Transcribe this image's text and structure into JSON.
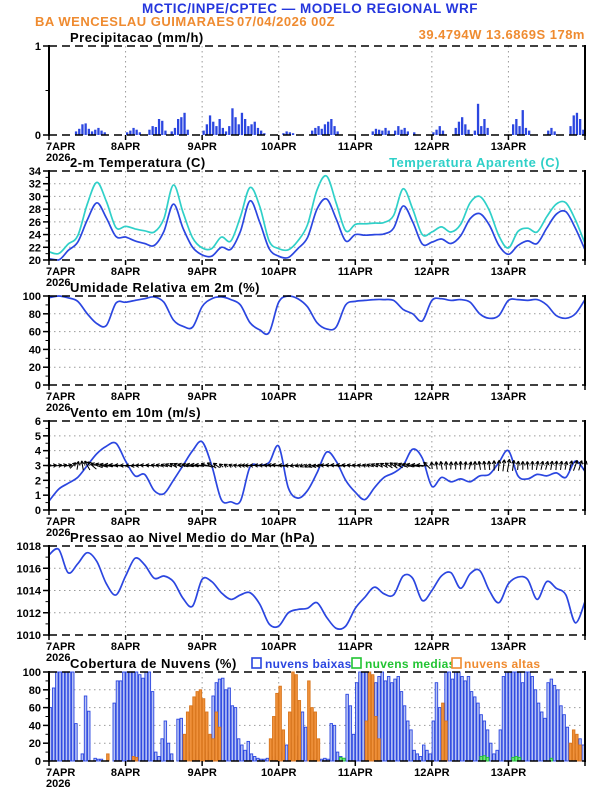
{
  "header": {
    "title": "MCTIC/INPE/CPTEC — MODELO REGIONAL WRF",
    "station": "BA WENCESLAU GUIMARAES",
    "run": "07/04/2026 00Z",
    "coords": "39.4794W 13.6869S 178m"
  },
  "x_axis": {
    "labels": [
      "7APR",
      "8APR",
      "9APR",
      "10APR",
      "11APR",
      "12APR",
      "13APR"
    ],
    "year": "2026",
    "days": 7
  },
  "colors": {
    "blue": "#2b46e0",
    "blue_fill": "#b7c3f4",
    "cyan": "#2fd0c8",
    "orange": "#ef8b30",
    "orange_fill": "#f0923c",
    "orange_edge": "#d9761c",
    "green": "#22c433",
    "green_fill": "#7fe08c",
    "grid": "#9a9a9a",
    "frame": "#000000",
    "title_blue": "#2436dd"
  },
  "chart_data": [
    {
      "type": "bar",
      "title": "Precipitacao (mm/h)",
      "ylim": [
        0,
        1
      ],
      "yticks": [
        0,
        1
      ],
      "ytick_step": 1,
      "grid_interior": false,
      "bars_hourly": [
        [
          8,
          0.04
        ],
        [
          9,
          0.07
        ],
        [
          10,
          0.12
        ],
        [
          11,
          0.13
        ],
        [
          12,
          0.07
        ],
        [
          13,
          0.04
        ],
        [
          14,
          0.06
        ],
        [
          15,
          0.08
        ],
        [
          16,
          0.05
        ],
        [
          17,
          0.03
        ],
        [
          24,
          0.03
        ],
        [
          25,
          0.05
        ],
        [
          26,
          0.08
        ],
        [
          27,
          0.06
        ],
        [
          28,
          0.03
        ],
        [
          31,
          0.06
        ],
        [
          32,
          0.1
        ],
        [
          33,
          0.09
        ],
        [
          34,
          0.18
        ],
        [
          35,
          0.16
        ],
        [
          36,
          0.05
        ],
        [
          38,
          0.04
        ],
        [
          39,
          0.08
        ],
        [
          40,
          0.18
        ],
        [
          41,
          0.2
        ],
        [
          42,
          0.25
        ],
        [
          43,
          0.06
        ],
        [
          48,
          0.05
        ],
        [
          49,
          0.12
        ],
        [
          50,
          0.22
        ],
        [
          51,
          0.15
        ],
        [
          52,
          0.1
        ],
        [
          53,
          0.18
        ],
        [
          54,
          0.08
        ],
        [
          55,
          0.04
        ],
        [
          56,
          0.1
        ],
        [
          57,
          0.3
        ],
        [
          58,
          0.2
        ],
        [
          59,
          0.12
        ],
        [
          60,
          0.25
        ],
        [
          61,
          0.18
        ],
        [
          62,
          0.1
        ],
        [
          63,
          0.12
        ],
        [
          64,
          0.15
        ],
        [
          65,
          0.08
        ],
        [
          66,
          0.05
        ],
        [
          67,
          0.02
        ],
        [
          73,
          0.02
        ],
        [
          74,
          0.04
        ],
        [
          75,
          0.03
        ],
        [
          76,
          0.02
        ],
        [
          82,
          0.05
        ],
        [
          83,
          0.08
        ],
        [
          84,
          0.1
        ],
        [
          85,
          0.07
        ],
        [
          86,
          0.12
        ],
        [
          87,
          0.15
        ],
        [
          88,
          0.18
        ],
        [
          89,
          0.1
        ],
        [
          90,
          0.04
        ],
        [
          101,
          0.04
        ],
        [
          102,
          0.07
        ],
        [
          103,
          0.06
        ],
        [
          104,
          0.05
        ],
        [
          105,
          0.08
        ],
        [
          106,
          0.05
        ],
        [
          108,
          0.05
        ],
        [
          109,
          0.1
        ],
        [
          110,
          0.06
        ],
        [
          111,
          0.08
        ],
        [
          112,
          0.04
        ],
        [
          114,
          0.03
        ],
        [
          120,
          0.03
        ],
        [
          121,
          0.06
        ],
        [
          122,
          0.1
        ],
        [
          123,
          0.05
        ],
        [
          127,
          0.08
        ],
        [
          128,
          0.15
        ],
        [
          129,
          0.2
        ],
        [
          130,
          0.12
        ],
        [
          131,
          0.06
        ],
        [
          133,
          0.05
        ],
        [
          134,
          0.35
        ],
        [
          135,
          0.1
        ],
        [
          136,
          0.18
        ],
        [
          137,
          0.08
        ],
        [
          145,
          0.12
        ],
        [
          146,
          0.18
        ],
        [
          147,
          0.1
        ],
        [
          148,
          0.28
        ],
        [
          149,
          0.08
        ],
        [
          150,
          0.05
        ],
        [
          156,
          0.05
        ],
        [
          157,
          0.08
        ],
        [
          158,
          0.04
        ],
        [
          163,
          0.1
        ],
        [
          164,
          0.22
        ],
        [
          165,
          0.25
        ],
        [
          166,
          0.18
        ],
        [
          167,
          0.06
        ]
      ]
    },
    {
      "type": "line",
      "title": "2-m Temperatura (C)",
      "title2": "Temperatura Aparente (C)",
      "ylim": [
        20,
        34
      ],
      "ytick_step": 2,
      "grid_interior": true,
      "x_step_hours": 3,
      "series": [
        {
          "name": "2-m Temperatura (C)",
          "color_key": "blue",
          "values": [
            20.2,
            19.9,
            21.5,
            22.8,
            26.3,
            29.0,
            26.6,
            23.7,
            23.6,
            23.0,
            22.6,
            22.3,
            24.5,
            28.8,
            25.0,
            22.0,
            20.8,
            20.6,
            22.0,
            21.7,
            24.5,
            29.3,
            26.0,
            21.8,
            20.6,
            20.4,
            21.8,
            23.5,
            28.0,
            29.6,
            26.5,
            23.0,
            24.0,
            23.9,
            24.0,
            24.1,
            25.0,
            28.5,
            26.0,
            22.5,
            22.8,
            23.3,
            22.6,
            23.8,
            26.5,
            27.3,
            25.5,
            22.3,
            20.9,
            22.3,
            23.0,
            22.6,
            25.0,
            27.2,
            27.6,
            25.0,
            21.6
          ]
        },
        {
          "name": "Temperatura Aparente (C)",
          "color_key": "cyan",
          "values": [
            21.3,
            21.0,
            22.5,
            23.8,
            28.8,
            32.2,
            29.2,
            25.1,
            25.3,
            24.9,
            24.6,
            24.4,
            26.5,
            31.8,
            27.5,
            23.5,
            21.9,
            21.8,
            23.6,
            23.0,
            26.8,
            31.4,
            28.5,
            23.0,
            21.8,
            21.6,
            23.0,
            25.5,
            31.0,
            33.2,
            29.0,
            24.6,
            25.6,
            25.7,
            25.8,
            25.9,
            27.0,
            31.2,
            28.0,
            24.0,
            24.4,
            25.2,
            24.4,
            25.6,
            29.0,
            30.0,
            27.8,
            23.8,
            21.9,
            24.5,
            25.0,
            24.4,
            26.8,
            28.8,
            29.0,
            26.3,
            22.6
          ]
        }
      ]
    },
    {
      "type": "line",
      "title": "Umidade Relativa em 2m (%)",
      "ylim": [
        0,
        100
      ],
      "ytick_step": 20,
      "grid_interior": true,
      "x_step_hours": 3,
      "series": [
        {
          "name": "Umidade Relativa em 2m (%)",
          "color_key": "blue",
          "values": [
            98,
            100,
            98,
            94,
            80,
            69,
            67,
            92,
            93,
            95,
            97,
            99,
            93,
            73,
            66,
            65,
            88,
            97,
            99,
            96,
            90,
            70,
            62,
            59,
            93,
            100,
            97,
            88,
            70,
            63,
            65,
            90,
            94,
            95,
            96,
            96,
            95,
            85,
            80,
            72,
            95,
            97,
            95,
            96,
            93,
            80,
            75,
            78,
            95,
            96,
            95,
            96,
            90,
            78,
            75,
            80,
            96
          ]
        }
      ]
    },
    {
      "type": "wind",
      "title": "Vento em 10m (m/s)",
      "ylim": [
        0,
        6
      ],
      "ytick_step": 1,
      "grid_interior": true,
      "x_step_hours": 3,
      "arrow_anchor": 3,
      "series": [
        {
          "name": "Vento em 10m (m/s)",
          "color_key": "blue",
          "values": [
            0.6,
            1.4,
            1.8,
            2.2,
            3.0,
            3.8,
            4.3,
            4.5,
            3.3,
            2.3,
            2.4,
            1.3,
            1.1,
            2.0,
            3.0,
            4.0,
            4.6,
            3.0,
            0.7,
            0.55,
            0.6,
            2.9,
            3.0,
            3.2,
            4.3,
            1.5,
            0.8,
            1.3,
            2.5,
            3.9,
            3.3,
            2.0,
            1.2,
            0.7,
            1.5,
            2.2,
            2.5,
            3.0,
            4.1,
            3.5,
            1.6,
            2.2,
            1.9,
            2.1,
            1.9,
            2.3,
            2.4,
            3.2,
            4.0,
            2.3,
            2.1,
            2.4,
            2.3,
            2.5,
            2.2,
            3.3,
            2.6
          ]
        }
      ],
      "arrow_angles_deg": [
        5,
        8,
        10,
        80,
        120,
        160,
        170,
        175,
        180,
        185,
        175,
        170,
        160,
        150,
        165,
        170,
        175,
        150,
        140,
        160,
        175,
        180,
        178,
        176,
        174,
        180,
        200,
        210,
        190,
        178,
        174,
        172,
        170,
        165,
        155,
        150,
        145,
        160,
        170,
        175,
        95,
        100,
        85,
        90,
        75,
        100,
        95,
        85,
        80,
        85,
        95,
        80,
        75,
        85,
        80,
        70,
        75
      ]
    },
    {
      "type": "line",
      "title": "Pressao ao Nivel Medio do Mar (hPa)",
      "ylim": [
        1010,
        1018
      ],
      "ytick_step": 2,
      "grid_interior": true,
      "x_step_hours": 3,
      "series": [
        {
          "name": "Pressao ao Nivel Medio do Mar (hPa)",
          "color_key": "blue",
          "values": [
            1017.2,
            1017.7,
            1015.6,
            1016.4,
            1017.4,
            1016.6,
            1014.6,
            1013.6,
            1015.3,
            1016.9,
            1016.3,
            1015.1,
            1015.3,
            1014.8,
            1013.3,
            1012.6,
            1015.0,
            1014.8,
            1013.8,
            1013.2,
            1013.6,
            1013.8,
            1012.8,
            1011.0,
            1010.8,
            1012.0,
            1012.3,
            1012.4,
            1012.9,
            1011.6,
            1010.6,
            1010.8,
            1012.4,
            1013.4,
            1014.3,
            1013.7,
            1013.6,
            1015.3,
            1015.1,
            1013.1,
            1014.0,
            1015.3,
            1015.6,
            1014.2,
            1015.5,
            1015.8,
            1014.0,
            1012.9,
            1014.6,
            1015.2,
            1015.0,
            1013.2,
            1014.8,
            1014.2,
            1013.6,
            1011.1,
            1013.0
          ]
        }
      ]
    },
    {
      "type": "cloudbars",
      "title": "Cobertura de Nuvens (%)",
      "ylim": [
        0,
        100
      ],
      "ytick_step": 20,
      "grid_interior": true,
      "legend": [
        {
          "label": "nuvens baixas",
          "color_key": "blue"
        },
        {
          "label": "nuvens medias",
          "color_key": "green"
        },
        {
          "label": "nuvens altas",
          "color_key": "orange"
        }
      ],
      "baixas_hourly": [
        60,
        82,
        100,
        100,
        100,
        100,
        100,
        100,
        42,
        0,
        8,
        73,
        56,
        0,
        3,
        2,
        2,
        0,
        0,
        0,
        65,
        90,
        90,
        100,
        100,
        100,
        100,
        100,
        97,
        93,
        100,
        100,
        78,
        10,
        5,
        25,
        45,
        20,
        8,
        0,
        47,
        48,
        5,
        8,
        10,
        12,
        8,
        15,
        18,
        10,
        8,
        73,
        88,
        92,
        93,
        80,
        82,
        62,
        60,
        25,
        18,
        12,
        22,
        8,
        5,
        3,
        2,
        2,
        3,
        2,
        5,
        8,
        8,
        10,
        18,
        12,
        20,
        8,
        28,
        55,
        38,
        18,
        10,
        3,
        2,
        2,
        3,
        2,
        42,
        40,
        10,
        5,
        3,
        75,
        62,
        30,
        88,
        100,
        100,
        100,
        100,
        95,
        88,
        95,
        100,
        90,
        95,
        88,
        92,
        95,
        78,
        62,
        45,
        35,
        12,
        8,
        5,
        18,
        12,
        8,
        45,
        88,
        60,
        35,
        100,
        100,
        92,
        100,
        100,
        95,
        90,
        95,
        78,
        72,
        65,
        52,
        45,
        35,
        20,
        8,
        12,
        35,
        95,
        100,
        100,
        100,
        100,
        100,
        88,
        100,
        100,
        95,
        80,
        65,
        55,
        48,
        88,
        92,
        85,
        80,
        62,
        52,
        38,
        18,
        8,
        4,
        25,
        18
      ],
      "altas_hourly": [
        [
          18,
          8
        ],
        [
          26,
          5
        ],
        [
          27,
          4
        ],
        [
          42,
          30
        ],
        [
          43,
          55
        ],
        [
          44,
          62
        ],
        [
          45,
          72
        ],
        [
          46,
          78
        ],
        [
          47,
          80
        ],
        [
          48,
          70
        ],
        [
          49,
          55
        ],
        [
          50,
          30
        ],
        [
          51,
          25
        ],
        [
          52,
          55
        ],
        [
          53,
          38
        ],
        [
          69,
          25
        ],
        [
          70,
          50
        ],
        [
          71,
          76
        ],
        [
          72,
          84
        ],
        [
          73,
          35
        ],
        [
          75,
          55
        ],
        [
          76,
          100
        ],
        [
          77,
          97
        ],
        [
          78,
          68
        ],
        [
          81,
          90
        ],
        [
          82,
          60
        ],
        [
          83,
          55
        ],
        [
          84,
          25
        ],
        [
          99,
          45
        ],
        [
          100,
          100
        ],
        [
          101,
          97
        ],
        [
          102,
          50
        ],
        [
          103,
          25
        ],
        [
          123,
          65
        ],
        [
          124,
          45
        ],
        [
          163,
          20
        ],
        [
          164,
          35
        ],
        [
          165,
          30
        ],
        [
          166,
          18
        ]
      ],
      "medias_hourly": [
        [
          91,
          4
        ],
        [
          92,
          3
        ],
        [
          135,
          5
        ],
        [
          136,
          6
        ],
        [
          137,
          4
        ],
        [
          145,
          4
        ],
        [
          146,
          5
        ],
        [
          147,
          4
        ],
        [
          157,
          3
        ]
      ]
    }
  ]
}
